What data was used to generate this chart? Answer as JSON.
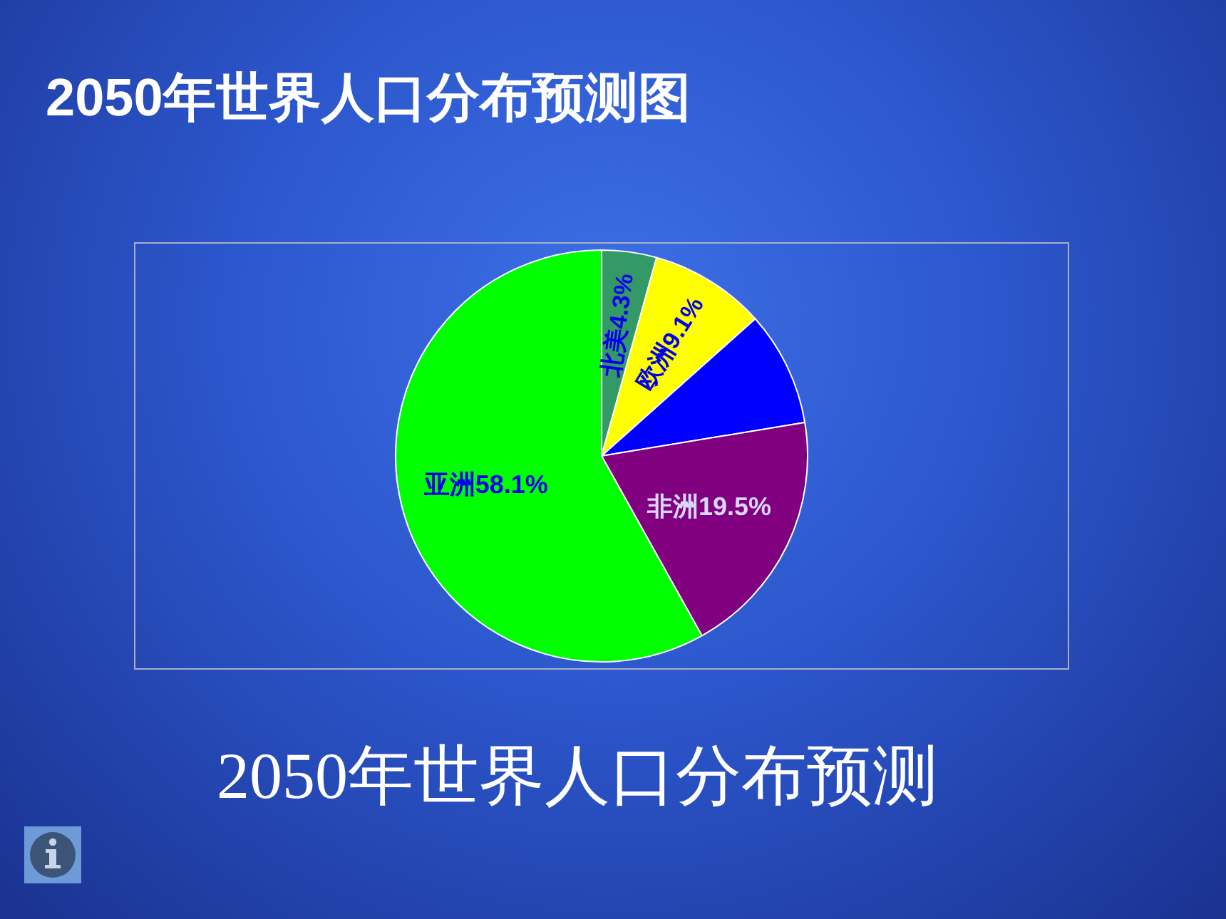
{
  "chart_data": {
    "type": "pie",
    "title": "2050年世界人口分布预测图",
    "categories": [
      "北美",
      "欧洲",
      null,
      "非洲",
      "亚洲"
    ],
    "values": [
      4.3,
      9.1,
      9.0,
      19.5,
      58.1
    ],
    "colors": [
      "#339966",
      "#ffff00",
      "#0000ff",
      "#800080",
      "#00ff00"
    ],
    "value_labels": [
      "4.3%",
      "9.1%",
      null,
      "19.5%",
      "58.1%"
    ],
    "annotations": [
      "2050年世界人口分布预测"
    ]
  }
}
